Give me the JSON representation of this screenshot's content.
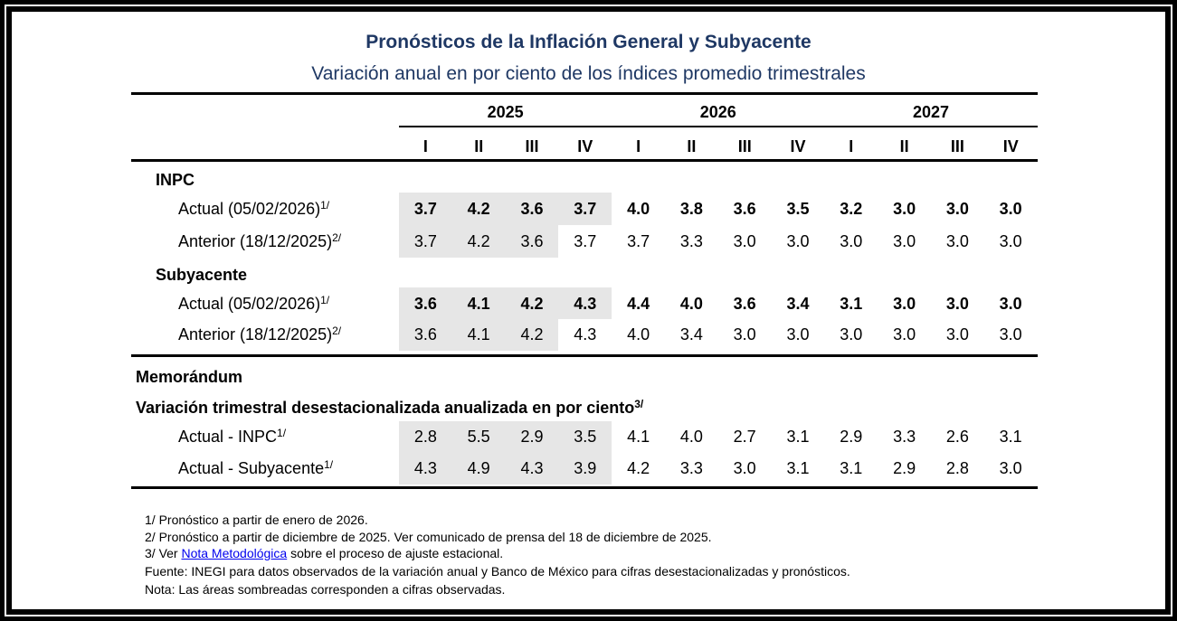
{
  "title": "Pronósticos de la Inflación General y Subyacente",
  "subtitle": "Variación anual en por ciento de los índices promedio trimestrales",
  "table": {
    "years": [
      "2025",
      "2026",
      "2027"
    ],
    "quarters": [
      "I",
      "II",
      "III",
      "IV",
      "I",
      "II",
      "III",
      "IV",
      "I",
      "II",
      "III",
      "IV"
    ],
    "sections": [
      {
        "title": "INPC",
        "rows": [
          {
            "label": "Actual (05/02/2026)",
            "note": "1/",
            "values": [
              "3.7",
              "4.2",
              "3.6",
              "3.7",
              "4.0",
              "3.8",
              "3.6",
              "3.5",
              "3.2",
              "3.0",
              "3.0",
              "3.0"
            ]
          },
          {
            "label": "Anterior (18/12/2025)",
            "note": "2/",
            "values": [
              "3.7",
              "4.2",
              "3.6",
              "3.7",
              "3.7",
              "3.3",
              "3.0",
              "3.0",
              "3.0",
              "3.0",
              "3.0",
              "3.0"
            ]
          }
        ]
      },
      {
        "title": "Subyacente",
        "rows": [
          {
            "label": "Actual (05/02/2026)",
            "note": "1/",
            "values": [
              "3.6",
              "4.1",
              "4.2",
              "4.3",
              "4.4",
              "4.0",
              "3.6",
              "3.4",
              "3.1",
              "3.0",
              "3.0",
              "3.0"
            ]
          },
          {
            "label": "Anterior (18/12/2025)",
            "note": "2/",
            "values": [
              "3.6",
              "4.1",
              "4.2",
              "4.3",
              "4.0",
              "3.4",
              "3.0",
              "3.0",
              "3.0",
              "3.0",
              "3.0",
              "3.0"
            ]
          }
        ]
      }
    ],
    "memo": {
      "title": "Memorándum",
      "subtitle": "Variación trimestral desestacionalizada anualizada en por ciento",
      "note": "3/",
      "rows": [
        {
          "label": "Actual - INPC",
          "note": "1/",
          "values": [
            "2.8",
            "5.5",
            "2.9",
            "3.5",
            "4.1",
            "4.0",
            "2.7",
            "3.1",
            "2.9",
            "3.3",
            "2.6",
            "3.1"
          ]
        },
        {
          "label": "Actual - Subyacente",
          "note": "1/",
          "values": [
            "4.3",
            "4.9",
            "4.3",
            "3.9",
            "4.2",
            "3.3",
            "3.0",
            "3.1",
            "3.1",
            "2.9",
            "2.8",
            "3.0"
          ]
        }
      ]
    }
  },
  "footnotes": [
    "1/ Pronóstico a partir de enero de 2026.",
    "2/ Pronóstico a partir de diciembre de 2025. Ver comunicado de prensa del 18 de diciembre de 2025.",
    {
      "parts": [
        "3/ Ver ",
        "Nota Metodológica",
        " sobre el proceso de ajuste estacional."
      ]
    },
    "Fuente: INEGI para datos observados de la variación anual y Banco de México para cifras desestacionalizadas y pronósticos.",
    "Nota: Las áreas sombreadas corresponden a cifras observadas."
  ]
}
